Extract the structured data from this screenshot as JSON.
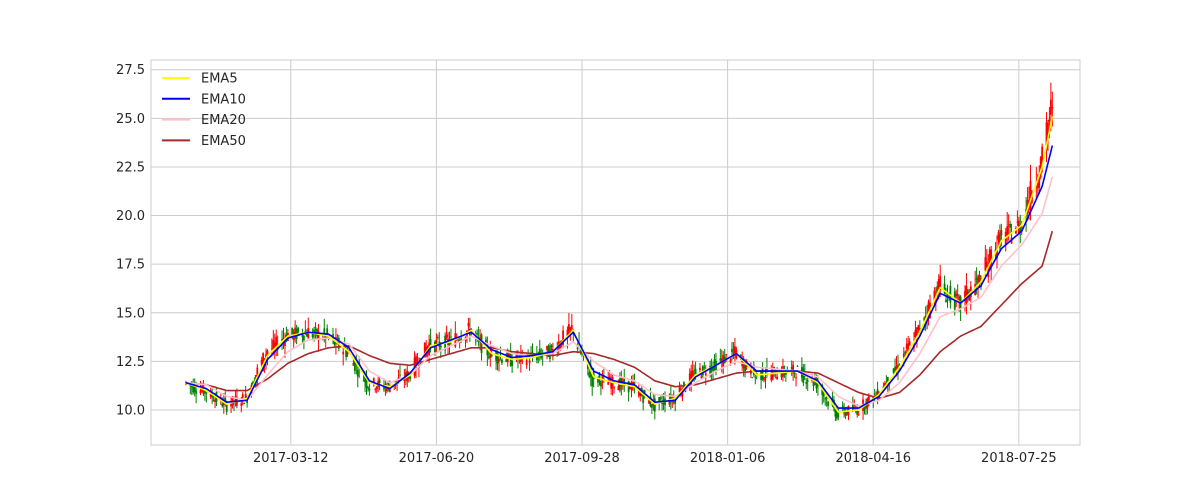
{
  "chart_data": {
    "type": "line",
    "title": "",
    "xlabel": "",
    "ylabel": "",
    "grid": true,
    "legend_position": "top-left",
    "xlim": [
      "2016-12-06",
      "2018-09-05"
    ],
    "ylim": [
      8.2,
      28.0
    ],
    "y_ticks": [
      "10.0",
      "12.5",
      "15.0",
      "17.5",
      "20.0",
      "22.5",
      "25.0",
      "27.5"
    ],
    "x_ticks": [
      "2017-03-12",
      "2017-06-20",
      "2017-09-28",
      "2018-01-06",
      "2018-04-16",
      "2018-07-25"
    ],
    "candle_colors": {
      "up": "#ff0000",
      "down": "#008000"
    },
    "dates": [
      "2016-12-30",
      "2017-01-13",
      "2017-01-27",
      "2017-02-10",
      "2017-02-24",
      "2017-03-10",
      "2017-03-24",
      "2017-04-07",
      "2017-04-21",
      "2017-05-05",
      "2017-05-19",
      "2017-06-02",
      "2017-06-16",
      "2017-06-30",
      "2017-07-14",
      "2017-07-28",
      "2017-08-11",
      "2017-08-25",
      "2017-09-08",
      "2017-09-22",
      "2017-10-06",
      "2017-10-20",
      "2017-11-03",
      "2017-11-17",
      "2017-12-01",
      "2017-12-15",
      "2017-12-29",
      "2018-01-12",
      "2018-01-26",
      "2018-02-09",
      "2018-02-23",
      "2018-03-09",
      "2018-03-23",
      "2018-04-06",
      "2018-04-20",
      "2018-05-04",
      "2018-05-18",
      "2018-06-01",
      "2018-06-15",
      "2018-06-29",
      "2018-07-13",
      "2018-07-27",
      "2018-08-10",
      "2018-08-17"
    ],
    "series": [
      {
        "name": "EMA5",
        "color": "#ffff00",
        "values": [
          11.4,
          11.0,
          10.3,
          10.6,
          12.8,
          13.8,
          14.0,
          13.8,
          13.0,
          11.4,
          11.2,
          11.8,
          13.3,
          13.5,
          14.1,
          12.9,
          12.6,
          12.7,
          13.0,
          14.1,
          11.7,
          11.4,
          11.2,
          10.3,
          10.6,
          11.8,
          12.3,
          12.9,
          11.8,
          11.9,
          12.0,
          11.4,
          9.9,
          10.0,
          10.8,
          12.2,
          14.0,
          16.3,
          15.5,
          16.6,
          18.7,
          19.5,
          22.5,
          25.1
        ]
      },
      {
        "name": "EMA10",
        "color": "#0000ff",
        "values": [
          11.4,
          11.1,
          10.4,
          10.5,
          12.6,
          13.7,
          14.0,
          13.9,
          13.2,
          11.5,
          11.1,
          11.9,
          13.2,
          13.6,
          14.0,
          13.1,
          12.7,
          12.8,
          13.0,
          14.0,
          12.0,
          11.5,
          11.3,
          10.4,
          10.5,
          11.7,
          12.3,
          12.9,
          12.0,
          12.0,
          12.0,
          11.5,
          10.1,
          10.1,
          10.7,
          12.0,
          13.8,
          16.0,
          15.5,
          16.4,
          18.3,
          19.2,
          21.5,
          23.6
        ]
      },
      {
        "name": "EMA20",
        "color": "#ffc0cb",
        "values": [
          11.4,
          11.3,
          10.7,
          10.5,
          11.8,
          13.0,
          13.6,
          13.7,
          13.4,
          12.0,
          11.4,
          11.8,
          12.8,
          13.3,
          13.8,
          13.3,
          12.9,
          12.8,
          12.9,
          13.5,
          12.5,
          11.8,
          11.5,
          10.8,
          10.7,
          11.4,
          12.0,
          12.5,
          12.2,
          12.1,
          12.0,
          11.7,
          10.7,
          10.2,
          10.5,
          11.4,
          12.9,
          14.8,
          15.2,
          15.8,
          17.4,
          18.5,
          20.1,
          22.0
        ]
      },
      {
        "name": "EMA50",
        "color": "#a52a2a",
        "values": [
          11.4,
          11.3,
          11.0,
          11.0,
          11.6,
          12.4,
          12.9,
          13.2,
          13.3,
          12.8,
          12.4,
          12.3,
          12.6,
          12.9,
          13.2,
          13.2,
          13.0,
          12.9,
          12.8,
          13.0,
          12.9,
          12.6,
          12.2,
          11.5,
          11.2,
          11.3,
          11.6,
          11.9,
          12.0,
          12.0,
          12.0,
          11.9,
          11.4,
          10.9,
          10.6,
          10.9,
          11.8,
          13.0,
          13.8,
          14.3,
          15.4,
          16.5,
          17.4,
          19.2
        ]
      }
    ]
  }
}
